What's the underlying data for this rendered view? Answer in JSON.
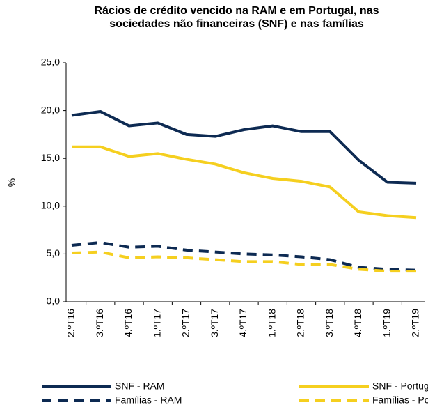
{
  "chart_data": {
    "type": "line",
    "title": "Rácios de crédito vencido na RAM e em Portugal, nas sociedades não financeiras (SNF) e nas famílias",
    "y_label": "%",
    "categories": [
      "2.ºT16",
      "3.ºT16",
      "4.ºT16",
      "1.ºT17",
      "2.ºT17",
      "3.ºT17",
      "4.ºT17",
      "1.ºT18",
      "2.ºT18",
      "3.ºT18",
      "4.ºT18",
      "1.ºT19",
      "2.ºT19"
    ],
    "series": [
      {
        "name": "SNF - RAM",
        "color": "#0d2a52",
        "dashed": false,
        "values": [
          19.5,
          19.9,
          18.4,
          18.7,
          17.5,
          17.3,
          18.0,
          18.4,
          17.8,
          17.8,
          14.8,
          12.5,
          12.4
        ]
      },
      {
        "name": "SNF - Portugal",
        "color": "#f5cf1f",
        "dashed": false,
        "values": [
          16.2,
          16.2,
          15.2,
          15.5,
          14.9,
          14.4,
          13.5,
          12.9,
          12.6,
          12.0,
          9.4,
          9.0,
          8.8
        ]
      },
      {
        "name": "Famílias - RAM",
        "color": "#0d2a52",
        "dashed": true,
        "values": [
          5.9,
          6.2,
          5.7,
          5.8,
          5.4,
          5.2,
          5.0,
          4.9,
          4.7,
          4.4,
          3.6,
          3.4,
          3.3
        ]
      },
      {
        "name": "Famílias - Portugal",
        "color": "#f5cf1f",
        "dashed": true,
        "values": [
          5.1,
          5.2,
          4.6,
          4.7,
          4.6,
          4.4,
          4.2,
          4.2,
          3.9,
          3.9,
          3.4,
          3.2,
          3.2
        ]
      }
    ],
    "ylim": [
      0,
      25
    ],
    "yticks": [
      {
        "value": 0,
        "label": "0,0"
      },
      {
        "value": 5,
        "label": "5,0"
      },
      {
        "value": 10,
        "label": "10,0"
      },
      {
        "value": 15,
        "label": "15,0"
      },
      {
        "value": 20,
        "label": "20,0"
      },
      {
        "value": 25,
        "label": "25,0"
      }
    ],
    "grid": false
  }
}
